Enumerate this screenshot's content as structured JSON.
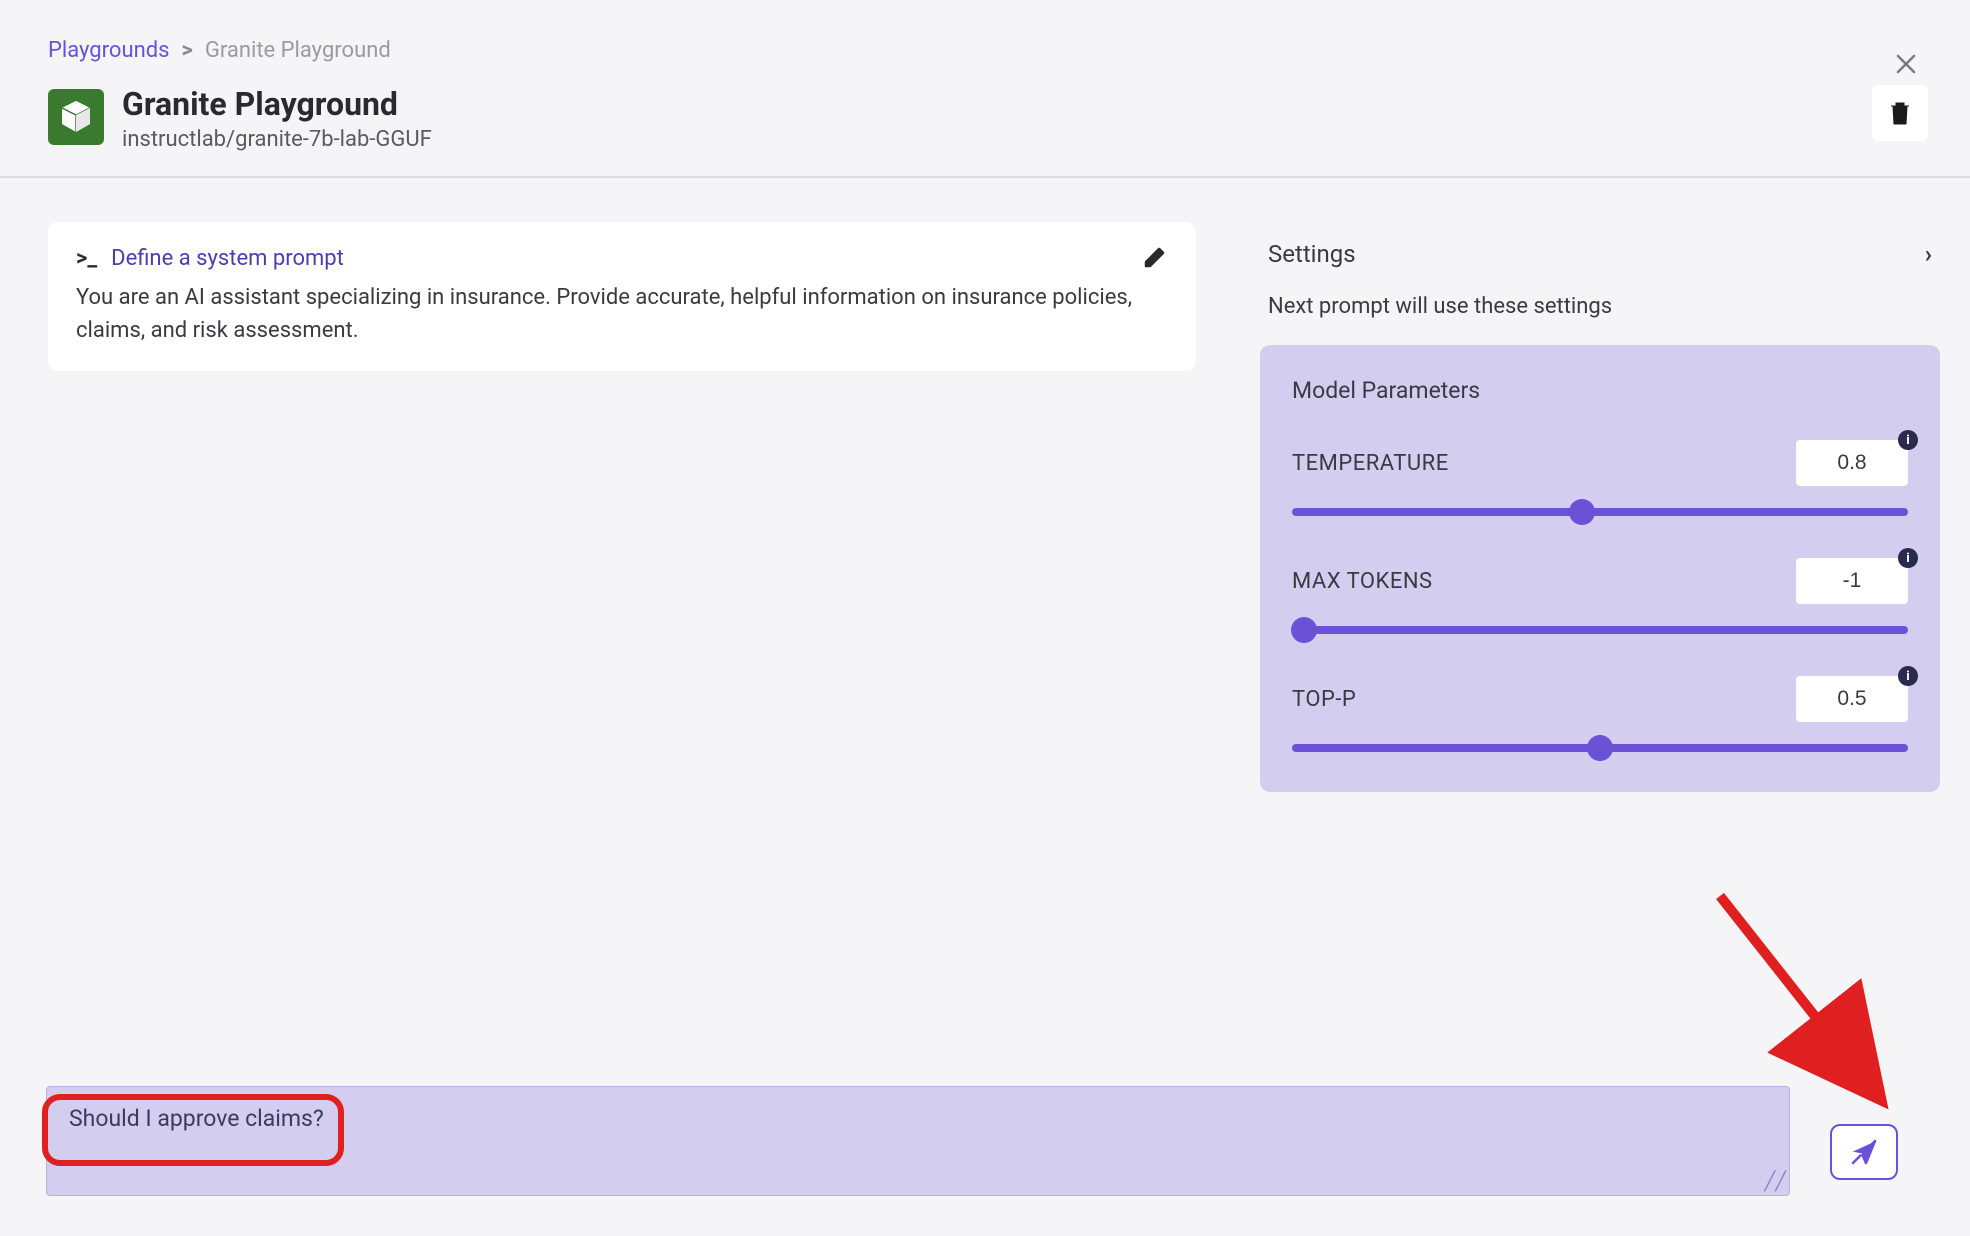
{
  "breadcrumb": {
    "root": "Playgrounds",
    "current": "Granite Playground"
  },
  "header": {
    "title": "Granite Playground",
    "subtitle": "instructlab/granite-7b-lab-GGUF"
  },
  "prompt_card": {
    "heading": "Define a system prompt",
    "body": "You are an AI assistant specializing in insurance. Provide accurate, helpful information on insurance policies, claims, and risk assessment."
  },
  "settings": {
    "title": "Settings",
    "note": "Next prompt will use these settings",
    "panel_title": "Model Parameters",
    "params": {
      "temperature": {
        "label": "TEMPERATURE",
        "value": "0.8",
        "thumb_pct": 47
      },
      "max_tokens": {
        "label": "MAX TOKENS",
        "value": "-1",
        "thumb_pct": 2
      },
      "top_p": {
        "label": "TOP-P",
        "value": "0.5",
        "thumb_pct": 50
      }
    }
  },
  "input": {
    "text": "Should I approve claims?"
  },
  "colors": {
    "accent": "#6b51d6",
    "panel_bg": "#d3ceef",
    "app_icon_bg": "#3a7a2e",
    "highlight": "#e02020"
  }
}
